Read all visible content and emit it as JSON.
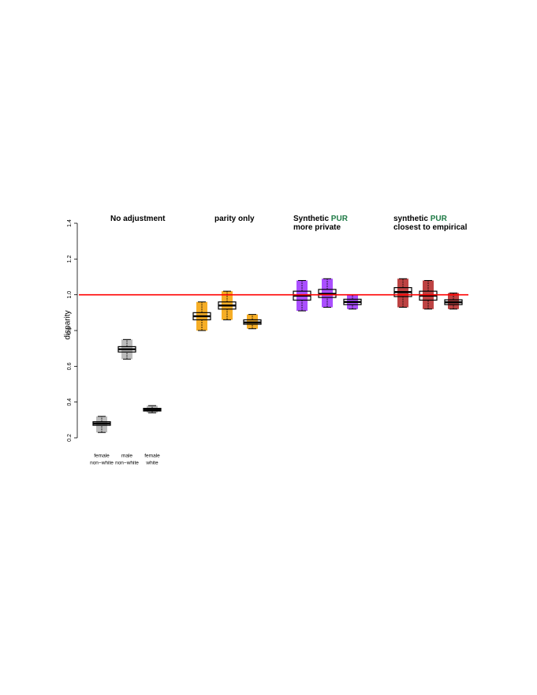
{
  "chart_data": {
    "type": "box",
    "ylabel": "disparity",
    "ylim": [
      0.2,
      1.4
    ],
    "yticks": [
      0.2,
      0.4,
      0.6,
      0.8,
      {
        "value": 1,
        "label": "1.0"
      },
      1.2,
      1.4
    ],
    "reference_line": {
      "value": 1,
      "color": "#ff0000"
    },
    "categories": [
      [
        "female",
        "non−white"
      ],
      [
        "male",
        "non−white"
      ],
      [
        "female",
        "white"
      ]
    ],
    "groups": [
      {
        "title": [
          [
            {
              "text": "No adjustment"
            }
          ]
        ],
        "color": "#b0b0b0",
        "boxes": [
          {
            "min": 0.23,
            "q1": 0.27,
            "median": 0.28,
            "q3": 0.29,
            "max": 0.32
          },
          {
            "min": 0.64,
            "q1": 0.68,
            "median": 0.695,
            "q3": 0.71,
            "max": 0.75
          },
          {
            "min": 0.34,
            "q1": 0.35,
            "median": 0.357,
            "q3": 0.365,
            "max": 0.38
          }
        ]
      },
      {
        "title": [
          [
            {
              "text": "parity only"
            }
          ]
        ],
        "color": "#f5a000",
        "boxes": [
          {
            "min": 0.8,
            "q1": 0.86,
            "median": 0.88,
            "q3": 0.9,
            "max": 0.96
          },
          {
            "min": 0.86,
            "q1": 0.92,
            "median": 0.94,
            "q3": 0.96,
            "max": 1.02
          },
          {
            "min": 0.81,
            "q1": 0.835,
            "median": 0.845,
            "q3": 0.86,
            "max": 0.89
          }
        ]
      },
      {
        "title": [
          [
            {
              "text": "Synthetic "
            },
            {
              "text": "PUR",
              "color": "#1e7a45"
            }
          ],
          [
            {
              "text": "more private"
            }
          ]
        ],
        "color": "#9b30ff",
        "boxes": [
          {
            "min": 0.91,
            "q1": 0.97,
            "median": 0.995,
            "q3": 1.02,
            "max": 1.08
          },
          {
            "min": 0.93,
            "q1": 0.985,
            "median": 1.005,
            "q3": 1.03,
            "max": 1.09
          },
          {
            "min": 0.92,
            "q1": 0.945,
            "median": 0.96,
            "q3": 0.975,
            "max": 1.0
          }
        ]
      },
      {
        "title": [
          [
            {
              "text": "synthetic "
            },
            {
              "text": "PUR",
              "color": "#1e7a45"
            }
          ],
          [
            {
              "text": "closest to empirical"
            }
          ]
        ],
        "color": "#b22222",
        "boxes": [
          {
            "min": 0.93,
            "q1": 0.99,
            "median": 1.015,
            "q3": 1.04,
            "max": 1.09
          },
          {
            "min": 0.92,
            "q1": 0.97,
            "median": 0.995,
            "q3": 1.02,
            "max": 1.08
          },
          {
            "min": 0.92,
            "q1": 0.945,
            "median": 0.958,
            "q3": 0.972,
            "max": 1.01
          }
        ]
      }
    ]
  }
}
